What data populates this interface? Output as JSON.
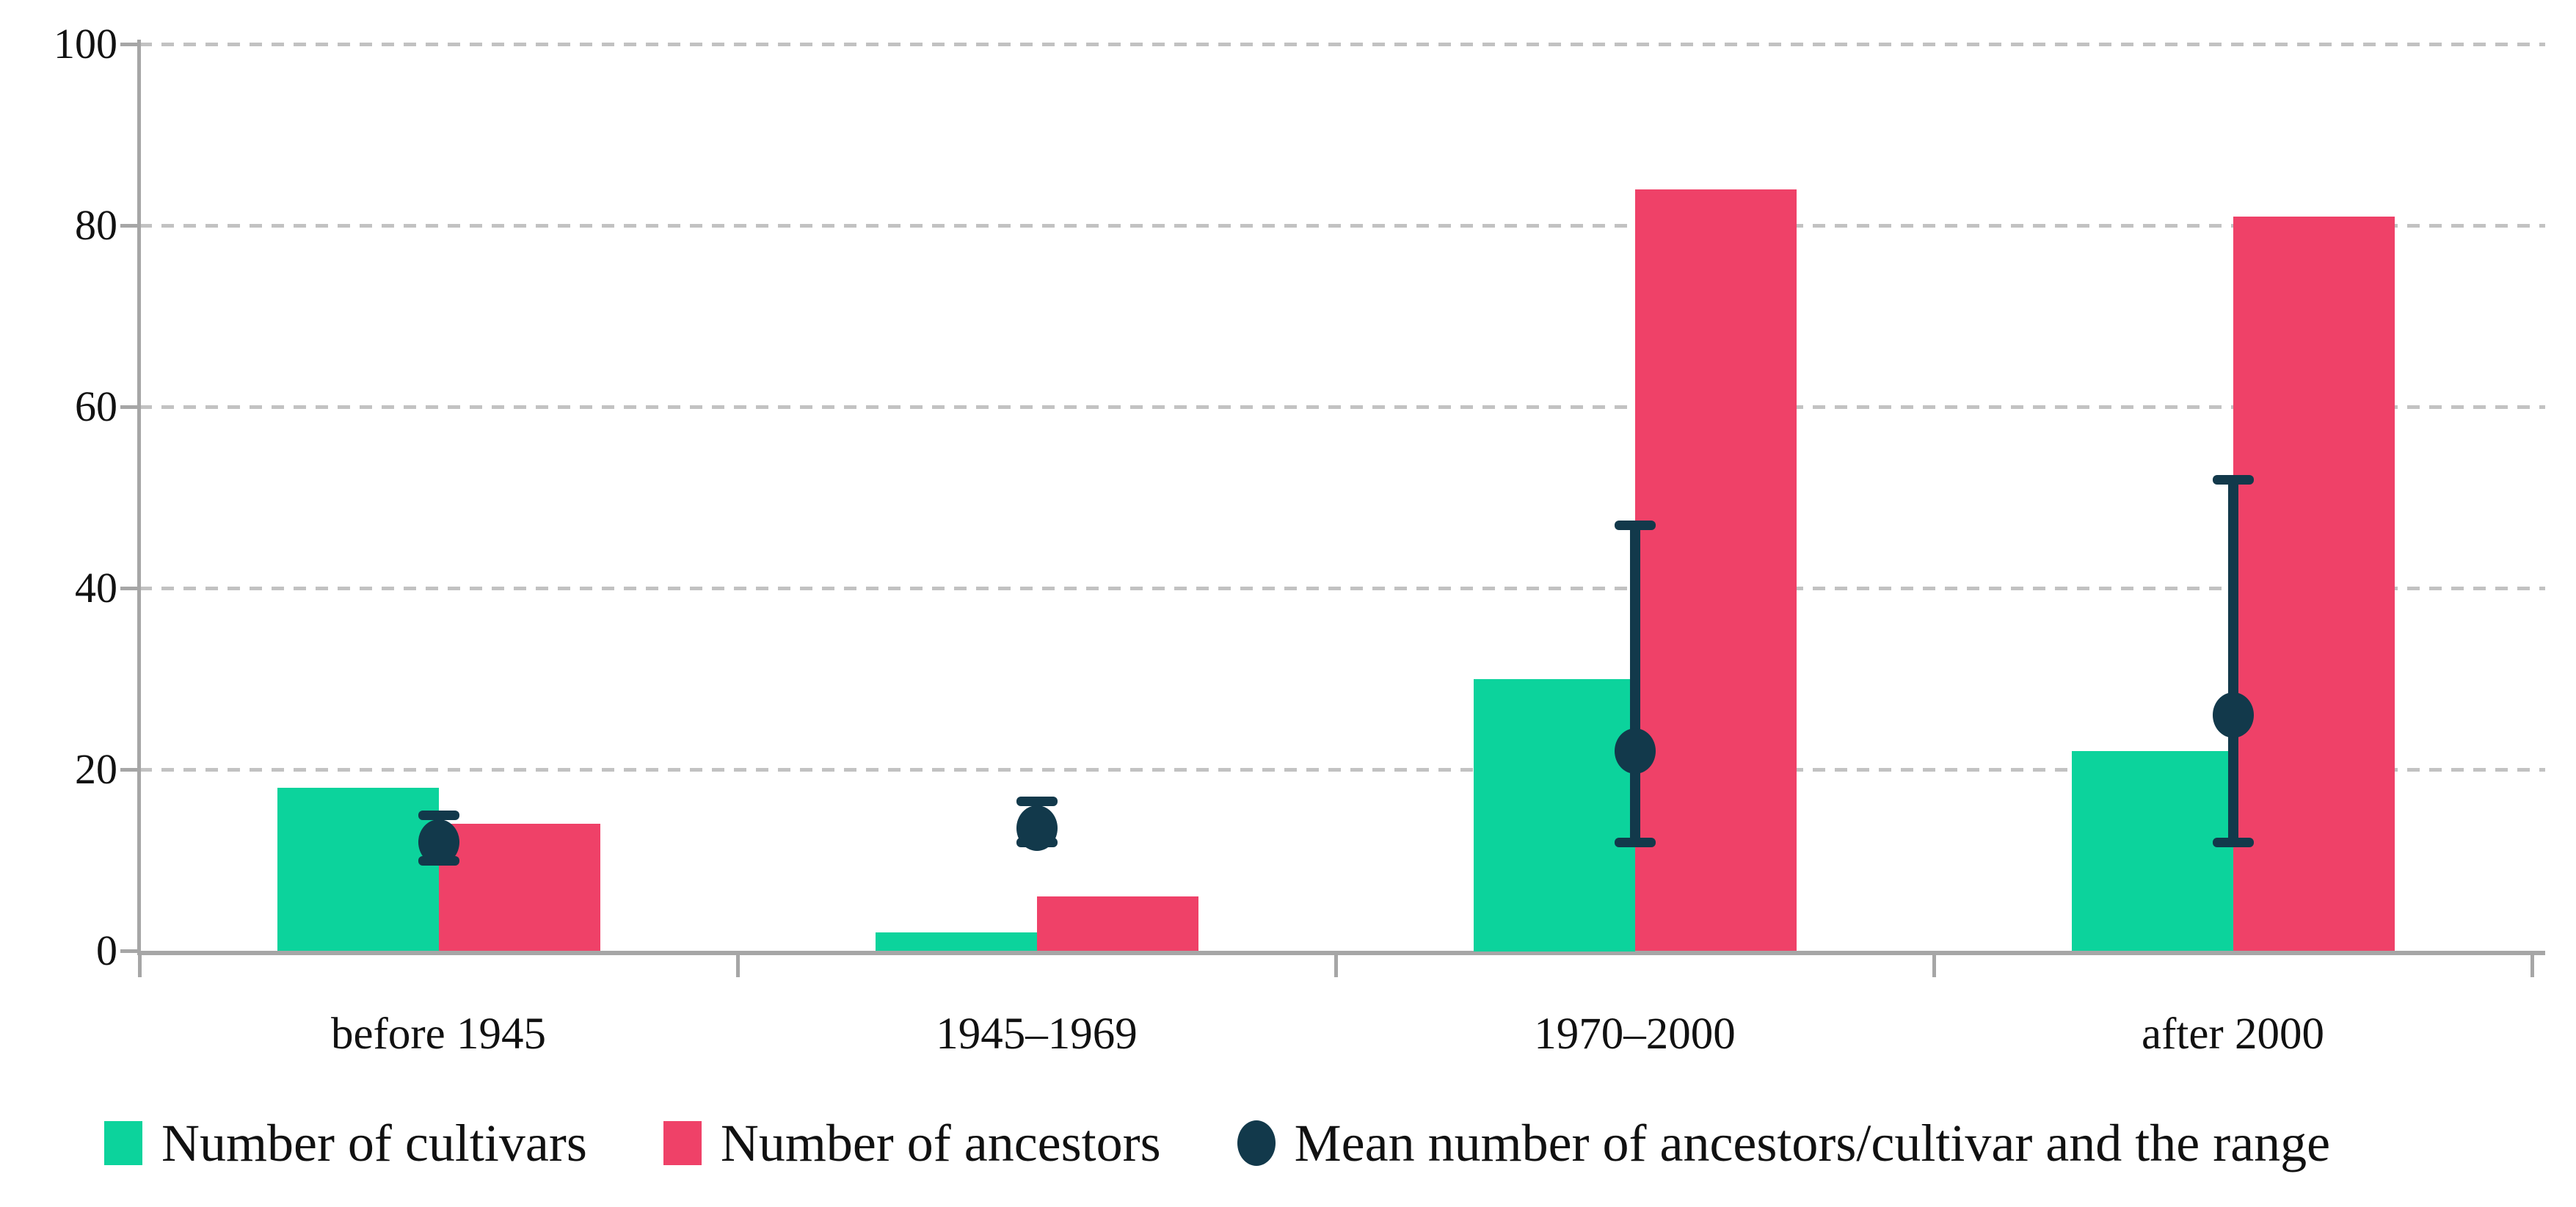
{
  "chart_data": {
    "type": "bar",
    "title": "",
    "xlabel": "",
    "ylabel": "",
    "categories": [
      "before 1945",
      "1945–1969",
      "1970–2000",
      "after 2000"
    ],
    "y_ticks": [
      0,
      20,
      40,
      60,
      80,
      100
    ],
    "ylim": [
      0,
      100
    ],
    "grid": "horizontal-dashed",
    "legend_position": "bottom",
    "series": [
      {
        "name": "Number of cultivars",
        "color": "#0cd39c",
        "values": [
          18,
          2,
          30,
          22
        ]
      },
      {
        "name": "Number of ancestors",
        "color": "#ef4168",
        "values": [
          14,
          6,
          84,
          81
        ]
      }
    ],
    "error_series": {
      "name": "Mean number of ancestors/cultivar and the range",
      "marker": "dot-with-range-whiskers",
      "color": "#12394b",
      "mean": [
        12,
        13.5,
        22,
        26
      ],
      "range_low": [
        10,
        12,
        12,
        12
      ],
      "range_high": [
        15,
        16.5,
        47,
        52
      ]
    },
    "colors": {
      "axis": "#a6a6a6",
      "gridline": "#c2c2c2",
      "text": "#111111",
      "background": "#ffffff"
    }
  }
}
